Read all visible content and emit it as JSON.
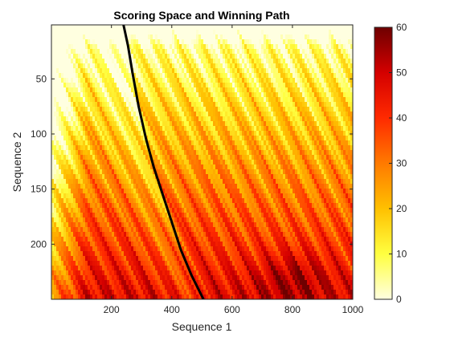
{
  "chart_data": {
    "type": "heatmap",
    "title": "Scoring Space and Winning Path",
    "xlabel": "Sequence 1",
    "ylabel": "Sequence 2",
    "xlim": [
      1,
      1000
    ],
    "ylim": [
      1,
      250
    ],
    "y_reversed": true,
    "x_ticks": [
      200,
      400,
      600,
      800,
      1000
    ],
    "y_ticks": [
      50,
      100,
      150,
      200
    ],
    "color_scale": {
      "min": 0,
      "max": 60,
      "ticks": [
        0,
        10,
        20,
        30,
        40,
        50,
        60
      ],
      "colormap": "hot (reversed)",
      "stops": [
        "#ffffe0",
        "#ffff40",
        "#ffc000",
        "#ff7a00",
        "#ff2a00",
        "#d40000",
        "#6e0000"
      ]
    },
    "score_surface": {
      "description_values": "score increases with Sequence 2 index and decreases near the path; range 0–60",
      "samples": [
        {
          "x": 50,
          "y": 20,
          "score": 2
        },
        {
          "x": 500,
          "y": 20,
          "score": 6
        },
        {
          "x": 950,
          "y": 20,
          "score": 3
        },
        {
          "x": 100,
          "y": 100,
          "score": 20
        },
        {
          "x": 600,
          "y": 100,
          "score": 28
        },
        {
          "x": 200,
          "y": 200,
          "score": 36
        },
        {
          "x": 800,
          "y": 230,
          "score": 52
        },
        {
          "x": 30,
          "y": 230,
          "score": 10
        }
      ]
    },
    "winning_path": {
      "color": "#000000",
      "points": [
        [
          240,
          1
        ],
        [
          255,
          20
        ],
        [
          270,
          45
        ],
        [
          290,
          75
        ],
        [
          315,
          105
        ],
        [
          340,
          130
        ],
        [
          370,
          155
        ],
        [
          400,
          180
        ],
        [
          430,
          205
        ],
        [
          465,
          228
        ],
        [
          505,
          250
        ]
      ]
    }
  }
}
